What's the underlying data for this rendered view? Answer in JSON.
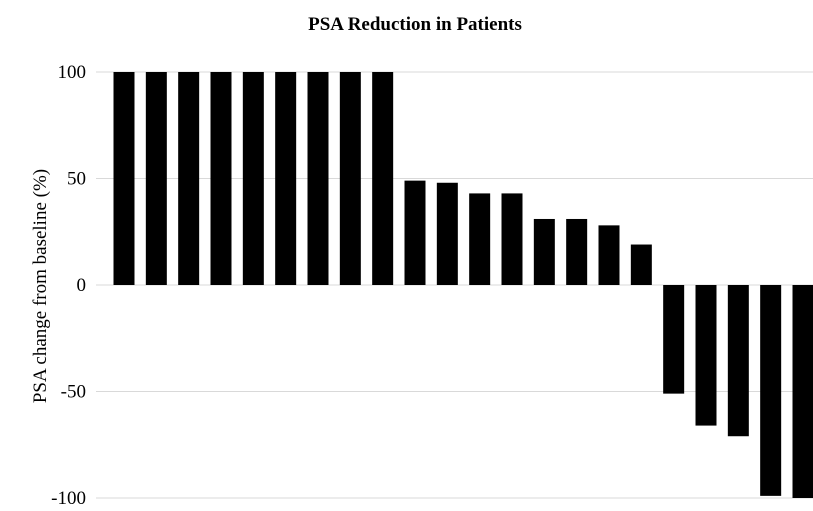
{
  "chart_data": {
    "type": "bar",
    "title": "PSA Reduction in Patients",
    "xlabel": "",
    "ylabel": "PSA change from baseline (%)",
    "ylim": [
      -100,
      100
    ],
    "yticks": [
      "100",
      "50",
      "0",
      "-50",
      "-100"
    ],
    "grid": true,
    "bar_color": "#000000",
    "grid_color": "#d9d9d9",
    "values": [
      100,
      100,
      100,
      100,
      100,
      100,
      100,
      100,
      100,
      49,
      48,
      43,
      43,
      31,
      31,
      28,
      19,
      -51,
      -66,
      -71,
      -99,
      -100
    ]
  }
}
